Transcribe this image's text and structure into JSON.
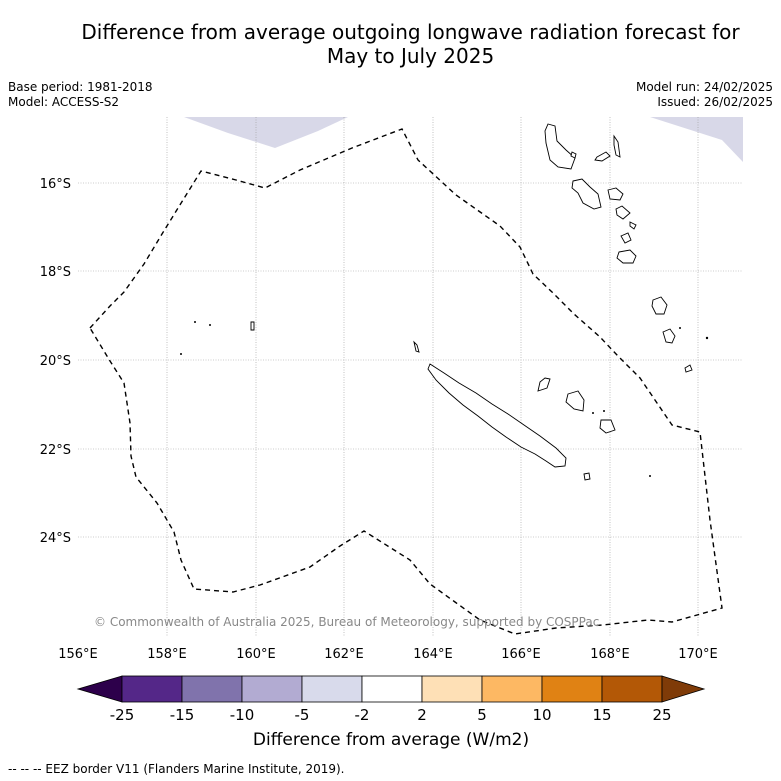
{
  "header": {
    "title_line1": "Difference from average outgoing longwave radiation forecast for",
    "title_line2": "May to July 2025",
    "base_period": "Base period: 1981-2018",
    "model": "Model: ACCESS-S2",
    "model_run": "Model run: 24/02/2025",
    "issued": "Issued: 26/02/2025"
  },
  "map": {
    "lon_ticks": [
      "156°E",
      "158°E",
      "160°E",
      "162°E",
      "164°E",
      "166°E",
      "168°E",
      "170°E"
    ],
    "lat_ticks": [
      "16°S",
      "18°S",
      "20°S",
      "22°S",
      "24°S"
    ],
    "copyright": "© Commonwealth of Australia 2025, Bureau of Meteorology, supported by COSPPac",
    "colors": {
      "anomaly_fill": "#d8d8e8",
      "eez_line": "#000000",
      "grid": "#9a9a9a"
    }
  },
  "colorbar": {
    "title": "Difference from average (W/m2)",
    "tick_labels": [
      "-25",
      "-15",
      "-10",
      "-5",
      "-2",
      "2",
      "5",
      "10",
      "15",
      "25"
    ],
    "colors": [
      "#2d004b",
      "#542788",
      "#8073ac",
      "#b2abd2",
      "#d8daeb",
      "#ffffff",
      "#fee0b6",
      "#fdb863",
      "#e08214",
      "#b35806",
      "#7f3b08"
    ]
  },
  "footer": {
    "note": "--  --  -- EEZ border V11 (Flanders Marine Institute, 2019)."
  }
}
